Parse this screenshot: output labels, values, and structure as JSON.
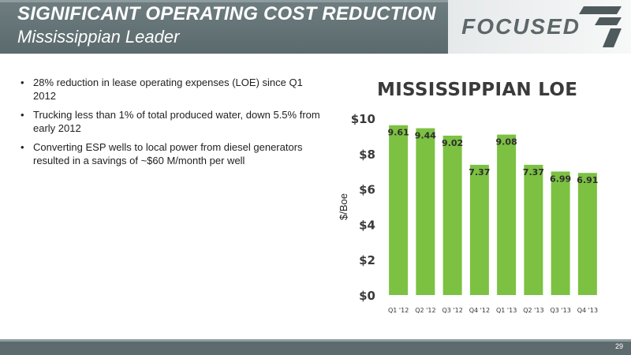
{
  "header": {
    "title": "SIGNIFICANT OPERATING COST REDUCTION",
    "subtitle": "Mississippian Leader"
  },
  "logo": {
    "text": "FOCUSED"
  },
  "bullets": [
    "28% reduction in lease operating expenses (LOE) since Q1 2012",
    "Trucking less than 1% of total produced water, down 5.5% from early 2012",
    "Converting ESP wells to local power from diesel generators resulted in a savings of ~$60 M/month per well"
  ],
  "footer": {
    "page_number": "29"
  },
  "colors": {
    "bar": "#7cc142",
    "header": "#5e6b6e"
  },
  "chart_data": {
    "type": "bar",
    "title": "MISSISSIPPIAN LOE",
    "ylabel": "$/Boe",
    "xlabel": "",
    "categories": [
      "Q1 '12",
      "Q2 '12",
      "Q3 '12",
      "Q4 '12",
      "Q1 '13",
      "Q2 '13",
      "Q3 '13",
      "Q4 '13"
    ],
    "values": [
      9.61,
      9.44,
      9.02,
      7.37,
      9.08,
      7.37,
      6.99,
      6.91
    ],
    "data_labels": [
      "9.61",
      "9.44",
      "9.02",
      "7.37",
      "9.08",
      "7.37",
      "6.99",
      "6.91"
    ],
    "yticks": [
      "$0",
      "$2",
      "$4",
      "$6",
      "$8",
      "$10"
    ],
    "ylim": [
      0,
      10
    ],
    "grid": false,
    "legend": "none"
  }
}
